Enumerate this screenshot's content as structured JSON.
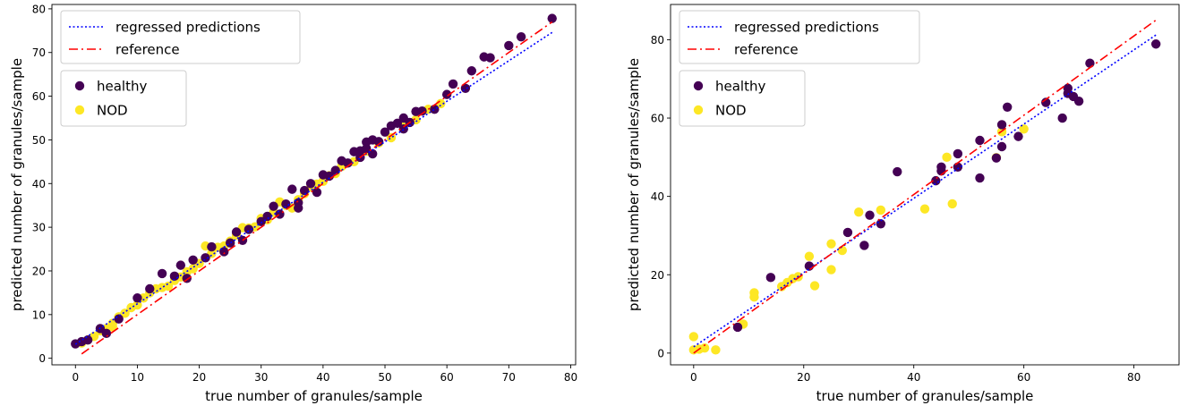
{
  "chart_data": [
    {
      "type": "scatter",
      "xlabel": "true number of granules/sample",
      "ylabel": "predicted number of granules/sample",
      "xlim": [
        -3.8,
        80.8
      ],
      "ylim": [
        -1.5,
        81
      ],
      "xticks": [
        0,
        10,
        20,
        30,
        40,
        50,
        60,
        70,
        80
      ],
      "yticks": [
        0,
        10,
        20,
        30,
        40,
        50,
        60,
        70,
        80
      ],
      "grid": false,
      "legend_position": "top-left",
      "lines": [
        {
          "name": "regressed predictions",
          "style": "dotted",
          "color": "#0000ff",
          "x": [
            0,
            77
          ],
          "y": [
            3.2,
            74.6
          ]
        },
        {
          "name": "reference",
          "style": "dashdot",
          "color": "#ff0000",
          "x": [
            1,
            77
          ],
          "y": [
            1,
            77
          ]
        }
      ],
      "series": [
        {
          "name": "healthy",
          "color": "#440154",
          "x": [
            0,
            1,
            2,
            4,
            5,
            7,
            10,
            12,
            14,
            16,
            17,
            18,
            19,
            21,
            22,
            24,
            25,
            26,
            27,
            28,
            30,
            31,
            32,
            33,
            34,
            35,
            36,
            36,
            37,
            38,
            39,
            40,
            41,
            42,
            43,
            44,
            45,
            46,
            46,
            47,
            47,
            48,
            48,
            49,
            50,
            51,
            52,
            53,
            53,
            54,
            55,
            56,
            58,
            60,
            61,
            63,
            64,
            66,
            67,
            70,
            72,
            77
          ],
          "y": [
            3.3,
            3.8,
            4.2,
            6.8,
            5.7,
            9.0,
            13.8,
            15.9,
            19.4,
            18.8,
            21.3,
            18.3,
            22.5,
            23.0,
            25.5,
            24.4,
            26.4,
            28.9,
            27.0,
            29.5,
            31.3,
            32.5,
            34.8,
            33.0,
            35.3,
            38.7,
            35.6,
            34.4,
            38.4,
            40.0,
            38.0,
            42.0,
            41.7,
            43.0,
            45.2,
            44.7,
            47.3,
            47.5,
            46.0,
            49.5,
            48.0,
            50.0,
            46.8,
            49.6,
            51.8,
            53.2,
            53.8,
            55.0,
            52.5,
            54.0,
            56.5,
            56.6,
            57.0,
            60.4,
            62.8,
            61.8,
            65.8,
            69.0,
            68.8,
            71.6,
            73.6,
            77.8
          ]
        },
        {
          "name": "NOD",
          "color": "#fde725",
          "x": [
            1,
            2,
            3,
            4,
            5,
            6,
            6,
            7,
            8,
            9,
            10,
            11,
            12,
            13,
            14,
            15,
            16,
            17,
            18,
            19,
            20,
            21,
            22,
            23,
            24,
            25,
            26,
            27,
            28,
            29,
            30,
            31,
            32,
            33,
            34,
            35,
            36,
            37,
            38,
            39,
            40,
            41,
            42,
            43,
            45,
            47,
            49,
            51,
            53,
            55,
            57,
            59
          ],
          "y": [
            3.5,
            4.2,
            5.0,
            6.3,
            6.8,
            8.0,
            7.2,
            9.5,
            10.3,
            11.6,
            12.2,
            13.8,
            15.0,
            15.9,
            16.2,
            16.5,
            17.8,
            18.6,
            19.8,
            20.5,
            21.7,
            25.7,
            24.0,
            25.4,
            25.7,
            26.8,
            28.2,
            29.9,
            29.8,
            30.1,
            32.0,
            31.7,
            33.4,
            35.8,
            35.0,
            34.4,
            36.3,
            37.7,
            39.2,
            39.9,
            40.5,
            41.8,
            42.3,
            43.9,
            45.0,
            47.4,
            49.3,
            50.5,
            53.8,
            54.6,
            57.0,
            58.3
          ]
        }
      ],
      "legend_lines": [
        "regressed predictions",
        "reference"
      ],
      "legend_points": [
        "healthy",
        "NOD"
      ]
    },
    {
      "type": "scatter",
      "xlabel": "true number of granules/sample",
      "ylabel": "predicted number of granules/sample",
      "xlim": [
        -4.2,
        88.2
      ],
      "ylim": [
        -3,
        89
      ],
      "xticks": [
        0,
        20,
        40,
        60,
        80
      ],
      "yticks": [
        0,
        20,
        40,
        60,
        80
      ],
      "grid": false,
      "legend_position": "top-left",
      "lines": [
        {
          "name": "regressed predictions",
          "style": "dotted",
          "color": "#0000ff",
          "x": [
            0,
            84
          ],
          "y": [
            1.6,
            81.2
          ]
        },
        {
          "name": "reference",
          "style": "dashdot",
          "color": "#ff0000",
          "x": [
            0,
            84
          ],
          "y": [
            0,
            85
          ]
        }
      ],
      "series": [
        {
          "name": "healthy",
          "color": "#440154",
          "x": [
            8,
            14,
            21,
            28,
            31,
            32,
            34,
            37,
            44,
            45,
            45,
            48,
            48,
            52,
            52,
            55,
            56,
            56,
            57,
            59,
            64,
            67,
            68,
            68,
            69,
            70,
            72,
            84
          ],
          "y": [
            6.6,
            19.3,
            22.2,
            30.8,
            27.5,
            35.2,
            33.0,
            46.3,
            44.0,
            47.5,
            46.5,
            50.9,
            47.5,
            54.3,
            44.7,
            49.8,
            52.7,
            58.3,
            62.8,
            55.3,
            64.0,
            60.0,
            67.6,
            66.3,
            65.5,
            64.3,
            74.0,
            78.9
          ]
        },
        {
          "name": "NOD",
          "color": "#fde725",
          "x": [
            0,
            0,
            1,
            2,
            4,
            9,
            11,
            11,
            16,
            17,
            18,
            19,
            21,
            22,
            25,
            25,
            27,
            30,
            34,
            42,
            46,
            47,
            55,
            56,
            60
          ],
          "y": [
            4.2,
            0.8,
            1.0,
            1.3,
            0.8,
            7.4,
            15.4,
            14.3,
            17.0,
            18.0,
            19.0,
            19.5,
            24.7,
            17.2,
            27.9,
            21.3,
            26.2,
            36.0,
            36.5,
            36.8,
            50.0,
            38.1,
            49.9,
            56.5,
            57.2
          ]
        }
      ],
      "legend_lines": [
        "regressed predictions",
        "reference"
      ],
      "legend_points": [
        "healthy",
        "NOD"
      ]
    }
  ]
}
